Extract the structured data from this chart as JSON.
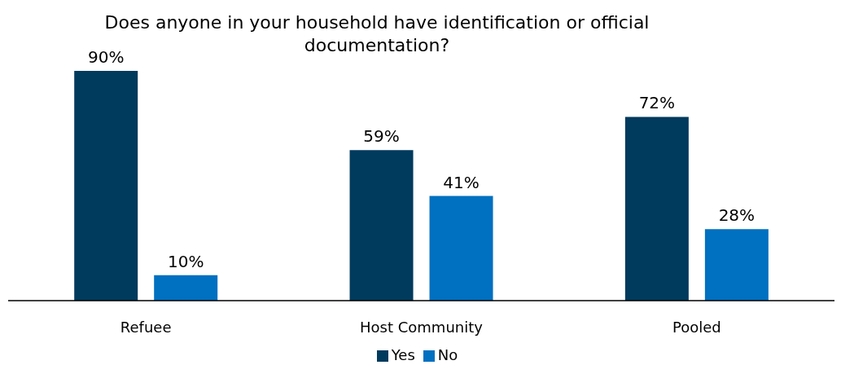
{
  "chart_data": {
    "type": "bar",
    "title": "Does anyone in your household have identification or official documentation?",
    "categories": [
      "Refuee",
      "Host Community",
      "Pooled"
    ],
    "series": [
      {
        "name": "Yes",
        "color": "#003a5d",
        "values": [
          90,
          59,
          72
        ],
        "value_labels": [
          "90%",
          "59%",
          "72%"
        ]
      },
      {
        "name": "No",
        "color": "#0070c0",
        "values": [
          10,
          41,
          28
        ],
        "value_labels": [
          "10%",
          "41%",
          "28%"
        ]
      }
    ],
    "relative": false,
    "legend": "bottom",
    "grid": false
  }
}
